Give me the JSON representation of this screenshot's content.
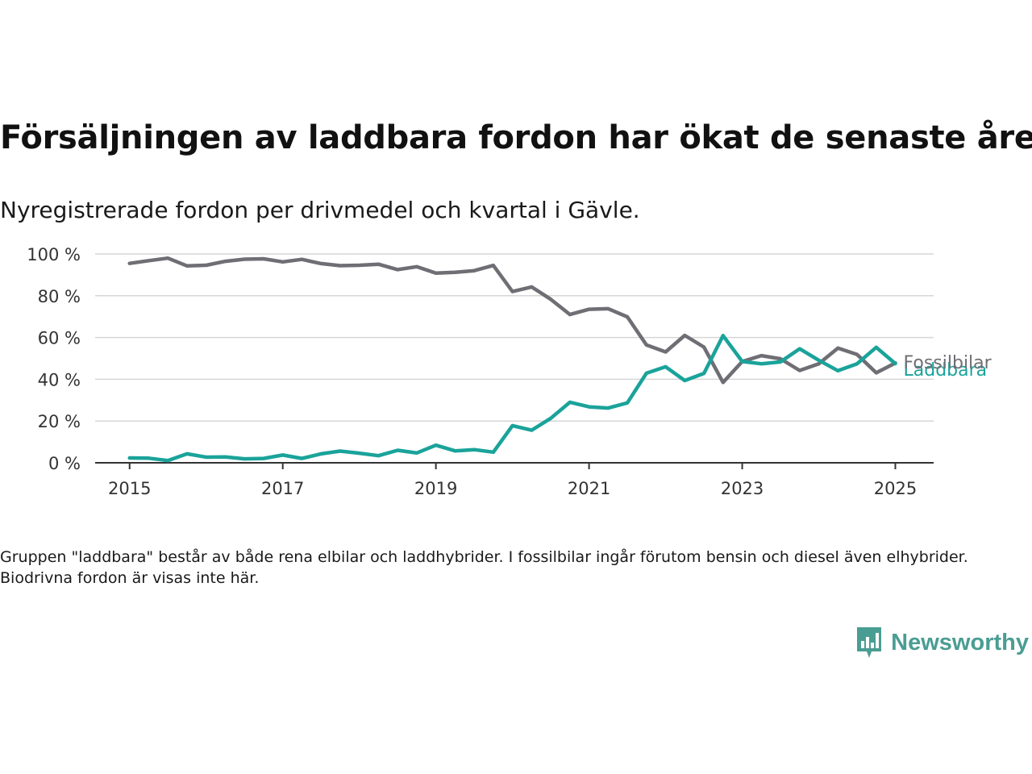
{
  "header": {
    "title": "Försäljningen av laddbara fordon har ökat de senaste åren",
    "subtitle": "Nyregistrerade fordon per drivmedel och kvartal i Gävle."
  },
  "footer": {
    "note": "Gruppen \"laddbara\" består av både rena elbilar och laddhybrider. I fossilbilar ingår förutom bensin och diesel även elhybrider. Biodrivna fordon är visas inte här.",
    "brand": "Newsworthy",
    "brand_icon": "bar-chart-icon",
    "brand_color": "#4a9d93"
  },
  "chart_data": {
    "type": "line",
    "title": "Försäljningen av laddbara fordon har ökat de senaste åren",
    "subtitle": "Nyregistrerade fordon per drivmedel och kvartal i Gävle.",
    "x_unit": "year (quarterly)",
    "x_start": 2015.0,
    "x_step": 0.25,
    "xlim": [
      2014.55,
      2025.5
    ],
    "ylim": [
      0,
      100
    ],
    "x_ticks": [
      2015,
      2017,
      2019,
      2021,
      2023,
      2025
    ],
    "x_tick_labels": [
      "2015",
      "2017",
      "2019",
      "2021",
      "2023",
      "2025"
    ],
    "y_ticks": [
      0,
      20,
      40,
      60,
      80,
      100
    ],
    "y_tick_labels": [
      "0 %",
      "20 %",
      "40 %",
      "60 %",
      "80 %",
      "100 %"
    ],
    "grid": "horizontal",
    "legend": "direct labels at line ends",
    "series": [
      {
        "name": "Fossilbilar",
        "color": "#6e6e74",
        "values": [
          95.5,
          96.8,
          98,
          94.3,
          94.6,
          96.5,
          97.5,
          97.7,
          96.2,
          97.4,
          95.4,
          94.4,
          94.6,
          95.1,
          92.5,
          93.9,
          90.8,
          91.2,
          92,
          94.5,
          82,
          84.2,
          78.3,
          71,
          73.5,
          73.8,
          69.9,
          56.4,
          53.1,
          61,
          55.4,
          38.5,
          48.5,
          51.3,
          49.8,
          44.2,
          47.4,
          54.9,
          51.9,
          43.1,
          47.8
        ]
      },
      {
        "name": "Laddbara",
        "color": "#1aa39a",
        "values": [
          2.3,
          2.2,
          1.1,
          4.3,
          2.7,
          2.8,
          1.9,
          2.1,
          3.7,
          2.1,
          4.3,
          5.6,
          4.6,
          3.4,
          6,
          4.7,
          8.4,
          5.7,
          6.3,
          5.1,
          17.8,
          15.6,
          21.3,
          29,
          26.8,
          26.2,
          28.7,
          42.9,
          46,
          39.4,
          42.8,
          60.9,
          48.5,
          47.4,
          48.3,
          54.6,
          49.1,
          44.1,
          47.4,
          55.3,
          47.5
        ]
      }
    ]
  }
}
